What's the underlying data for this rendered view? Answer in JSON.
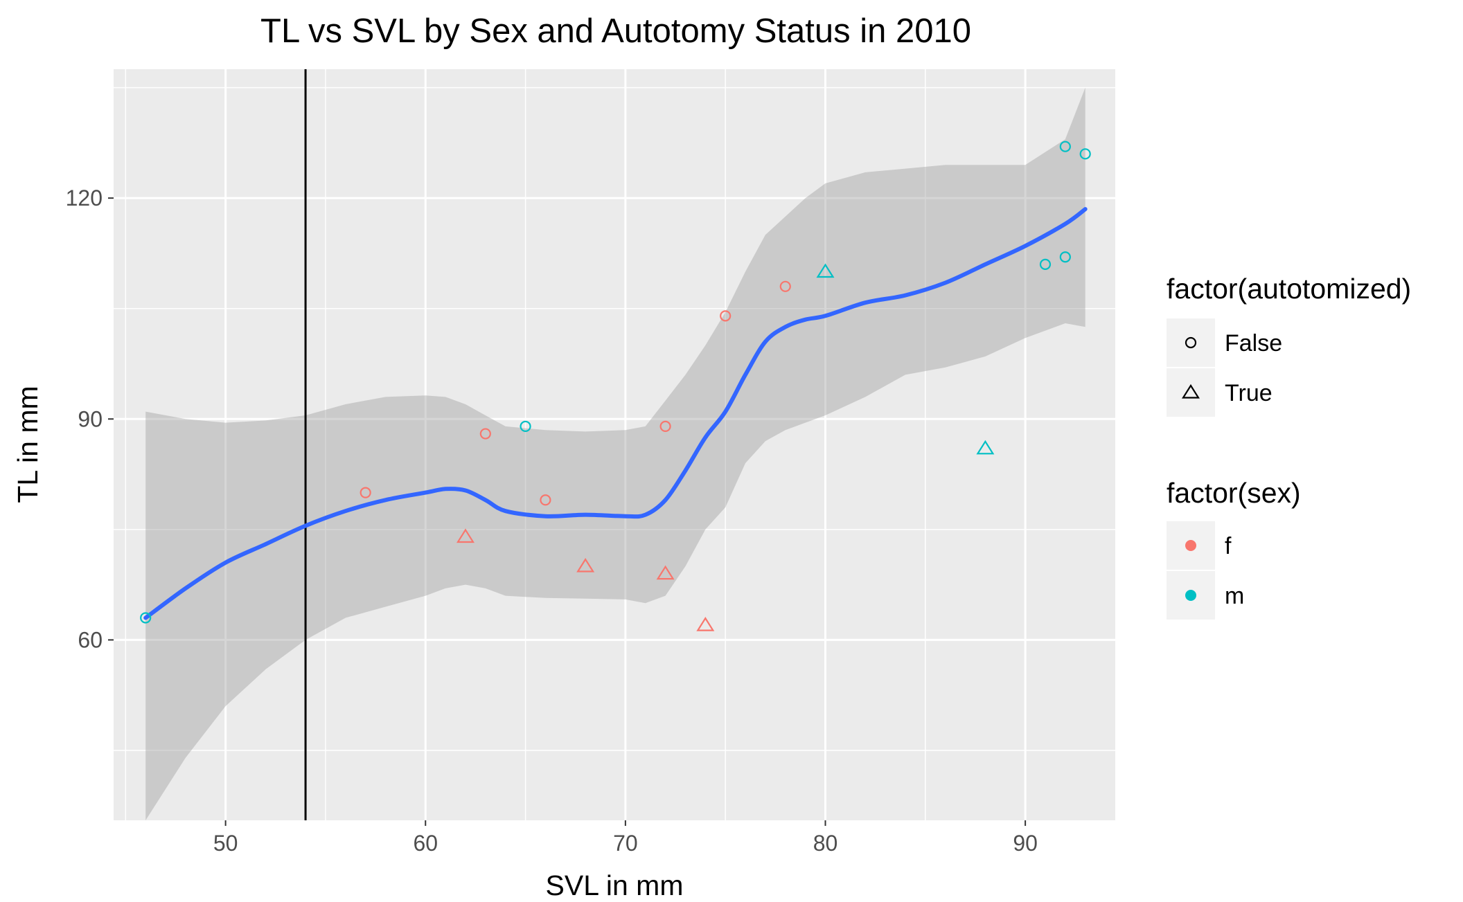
{
  "chart_data": {
    "type": "scatter",
    "title": "TL vs SVL by Sex and Autotomy Status in 2010",
    "xlabel": "SVL in mm",
    "ylabel": "TL in mm",
    "xlim": [
      44.4,
      94.5
    ],
    "ylim": [
      35.5,
      137.5
    ],
    "x_ticks": [
      50,
      60,
      70,
      80,
      90
    ],
    "x_tick_labels": [
      "50",
      "60",
      "70",
      "80",
      "90"
    ],
    "y_ticks": [
      60,
      90,
      120
    ],
    "y_tick_labels": [
      "60",
      "90",
      "120"
    ],
    "grid": true,
    "vline_x": 54,
    "colors": {
      "f": "#F8766D",
      "m": "#00BFC4",
      "smooth": "#3366FF",
      "ribbon": "#999999",
      "panel": "#EBEBEB"
    },
    "points": [
      {
        "x": 46,
        "y": 63,
        "sex": "m",
        "autotomized": "False"
      },
      {
        "x": 57,
        "y": 80,
        "sex": "f",
        "autotomized": "False"
      },
      {
        "x": 62,
        "y": 74,
        "sex": "f",
        "autotomized": "True"
      },
      {
        "x": 63,
        "y": 88,
        "sex": "f",
        "autotomized": "False"
      },
      {
        "x": 65,
        "y": 89,
        "sex": "m",
        "autotomized": "False"
      },
      {
        "x": 66,
        "y": 79,
        "sex": "f",
        "autotomized": "False"
      },
      {
        "x": 68,
        "y": 70,
        "sex": "f",
        "autotomized": "True"
      },
      {
        "x": 72,
        "y": 89,
        "sex": "f",
        "autotomized": "False"
      },
      {
        "x": 72,
        "y": 69,
        "sex": "f",
        "autotomized": "True"
      },
      {
        "x": 74,
        "y": 62,
        "sex": "f",
        "autotomized": "True"
      },
      {
        "x": 75,
        "y": 104,
        "sex": "f",
        "autotomized": "False"
      },
      {
        "x": 78,
        "y": 108,
        "sex": "f",
        "autotomized": "False"
      },
      {
        "x": 80,
        "y": 110,
        "sex": "m",
        "autotomized": "True"
      },
      {
        "x": 88,
        "y": 86,
        "sex": "m",
        "autotomized": "True"
      },
      {
        "x": 91,
        "y": 111,
        "sex": "m",
        "autotomized": "False"
      },
      {
        "x": 92,
        "y": 112,
        "sex": "m",
        "autotomized": "False"
      },
      {
        "x": 92,
        "y": 127,
        "sex": "m",
        "autotomized": "False"
      },
      {
        "x": 93,
        "y": 126,
        "sex": "m",
        "autotomized": "False"
      }
    ],
    "smooth": {
      "x": [
        46,
        48,
        50,
        52,
        54,
        56,
        58,
        60,
        61,
        62,
        63,
        64,
        66,
        68,
        70,
        71,
        72,
        73,
        74,
        75,
        76,
        77,
        78,
        79,
        80,
        82,
        84,
        86,
        88,
        90,
        92,
        93
      ],
      "y": [
        63,
        67,
        70.5,
        73,
        75.5,
        77.5,
        79,
        80,
        80.5,
        80.3,
        79,
        77.5,
        76.8,
        77,
        76.8,
        77,
        79,
        83,
        87.5,
        91,
        96,
        100.5,
        102.5,
        103.5,
        104,
        105.8,
        106.8,
        108.5,
        111,
        113.5,
        116.5,
        118.5
      ],
      "lower": [
        35.5,
        44,
        51,
        56,
        60,
        63,
        64.5,
        66,
        67,
        67.5,
        67,
        66,
        65.7,
        65.6,
        65.5,
        65,
        66,
        70,
        75,
        78,
        84,
        87,
        88.5,
        89.5,
        90.5,
        93,
        96,
        97,
        98.5,
        101,
        103,
        102.5
      ],
      "upper": [
        91,
        90,
        89.5,
        89.8,
        90.5,
        92,
        93,
        93.2,
        93,
        92,
        90.5,
        89,
        88.5,
        88.3,
        88.5,
        89,
        92.5,
        96,
        100,
        104.5,
        110,
        115,
        117.5,
        120,
        122,
        123.5,
        124,
        124.5,
        124.5,
        124.5,
        128,
        135
      ]
    },
    "legends": [
      {
        "title": "factor(autotomized)",
        "items": [
          {
            "label": "False",
            "shape": "circle"
          },
          {
            "label": "True",
            "shape": "triangle"
          }
        ]
      },
      {
        "title": "factor(sex)",
        "items": [
          {
            "label": "f",
            "color": "#F8766D"
          },
          {
            "label": "m",
            "color": "#00BFC4"
          }
        ]
      }
    ],
    "legend_position": "right"
  }
}
